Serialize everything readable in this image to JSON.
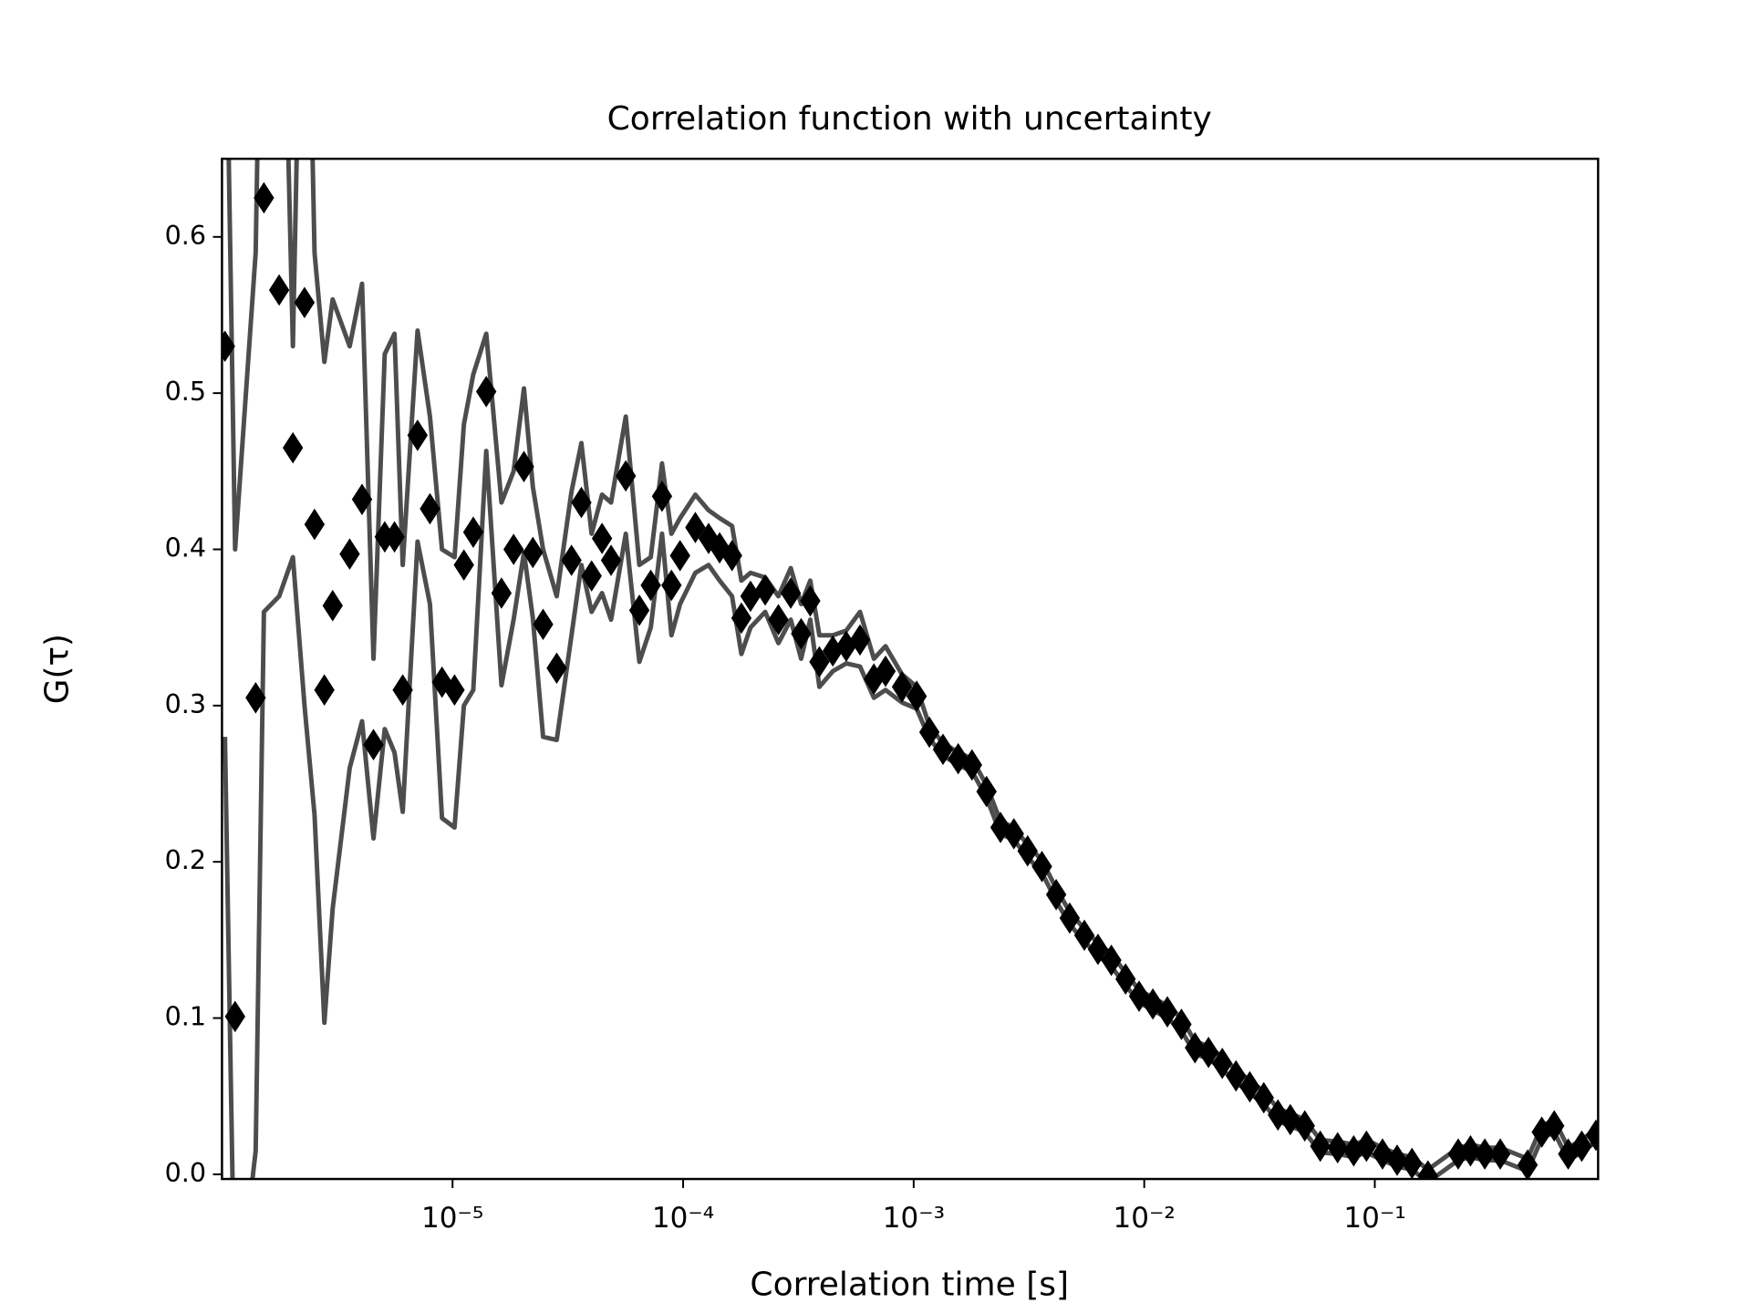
{
  "chart_data": {
    "type": "line",
    "title": "Correlation function with uncertainty",
    "xlabel": "Correlation time [s]",
    "ylabel": "G(τ)",
    "xscale": "log",
    "xlim": [
      1e-06,
      0.93
    ],
    "ylim": [
      -0.003,
      0.65
    ],
    "xticks": [
      {
        "value": 1e-05,
        "label": "10⁻⁵"
      },
      {
        "value": 0.0001,
        "label": "10⁻⁴"
      },
      {
        "value": 0.001,
        "label": "10⁻³"
      },
      {
        "value": 0.01,
        "label": "10⁻²"
      },
      {
        "value": 0.1,
        "label": "10⁻¹"
      }
    ],
    "yticks": [
      {
        "value": 0,
        "label": "0.0"
      },
      0.1,
      0.2,
      0.3,
      0.4,
      0.5,
      0.6
    ],
    "grid": false,
    "x": [
      1.03e-06,
      1.14e-06,
      1.4e-06,
      1.52e-06,
      1.77e-06,
      2.03e-06,
      2.28e-06,
      2.52e-06,
      2.78e-06,
      3.02e-06,
      3.58e-06,
      4.05e-06,
      4.54e-06,
      5.08e-06,
      5.6e-06,
      6.08e-06,
      7.05e-06,
      7.98e-06,
      9e-06,
      1.02e-05,
      1.12e-05,
      1.23e-05,
      1.4e-05,
      1.63e-05,
      1.84e-05,
      2.04e-05,
      2.23e-05,
      2.47e-05,
      2.83e-05,
      3.28e-05,
      3.62e-05,
      4.01e-05,
      4.45e-05,
      4.87e-05,
      5.64e-05,
      6.46e-05,
      7.24e-05,
      8.1e-05,
      8.9e-05,
      9.7e-05,
      0.000113,
      0.000129,
      0.000144,
      0.000163,
      0.000179,
      0.000196,
      0.000227,
      0.000259,
      0.000293,
      0.000325,
      0.000356,
      0.00039,
      0.000446,
      0.00051,
      0.000585,
      0.000672,
      0.000755,
      0.00089,
      0.00103,
      0.00117,
      0.00134,
      0.00156,
      0.00179,
      0.00207,
      0.00238,
      0.00272,
      0.00312,
      0.0036,
      0.00415,
      0.00475,
      0.0055,
      0.0063,
      0.0072,
      0.0083,
      0.0095,
      0.0109,
      0.0126,
      0.0145,
      0.0166,
      0.019,
      0.0218,
      0.025,
      0.0287,
      0.033,
      0.038,
      0.043,
      0.0497,
      0.058,
      0.069,
      0.081,
      0.092,
      0.108,
      0.125,
      0.145,
      0.17,
      0.23,
      0.26,
      0.3,
      0.35,
      0.46,
      0.53,
      0.6,
      0.69,
      0.79,
      0.91
    ],
    "series": [
      {
        "color": "#000000",
        "marker": "diamond",
        "values": [
          0.53,
          0.101,
          0.305,
          0.625,
          0.566,
          0.465,
          0.558,
          0.416,
          0.31,
          0.364,
          0.397,
          0.432,
          0.275,
          0.408,
          0.408,
          0.31,
          0.473,
          0.426,
          0.315,
          0.31,
          0.39,
          0.411,
          0.501,
          0.372,
          0.4,
          0.453,
          0.398,
          0.352,
          0.324,
          0.393,
          0.43,
          0.383,
          0.407,
          0.393,
          0.447,
          0.361,
          0.377,
          0.434,
          0.377,
          0.396,
          0.414,
          0.407,
          0.401,
          0.396,
          0.356,
          0.37,
          0.374,
          0.355,
          0.372,
          0.346,
          0.367,
          0.328,
          0.335,
          0.338,
          0.342,
          0.317,
          0.322,
          0.312,
          0.306,
          0.283,
          0.272,
          0.266,
          0.262,
          0.245,
          0.222,
          0.218,
          0.207,
          0.197,
          0.179,
          0.164,
          0.153,
          0.144,
          0.137,
          0.125,
          0.114,
          0.109,
          0.104,
          0.096,
          0.081,
          0.078,
          0.071,
          0.063,
          0.056,
          0.049,
          0.038,
          0.035,
          0.031,
          0.018,
          0.017,
          0.015,
          0.018,
          0.013,
          0.009,
          0.007,
          -0.001,
          0.013,
          0.015,
          0.013,
          0.013,
          0.006,
          0.027,
          0.031,
          0.013,
          0.018,
          0.025
        ]
      },
      {
        "color": "#4d4d4d",
        "values": [
          0.8,
          0.4,
          0.59,
          0.9,
          0.9,
          0.53,
          0.9,
          0.59,
          0.52,
          0.56,
          0.53,
          0.57,
          0.33,
          0.525,
          0.538,
          0.39,
          0.54,
          0.485,
          0.4,
          0.395,
          0.48,
          0.512,
          0.538,
          0.43,
          0.45,
          0.503,
          0.44,
          0.4,
          0.37,
          0.437,
          0.468,
          0.41,
          0.435,
          0.43,
          0.485,
          0.39,
          0.395,
          0.455,
          0.41,
          0.42,
          0.435,
          0.425,
          0.42,
          0.415,
          0.38,
          0.385,
          0.382,
          0.37,
          0.388,
          0.365,
          0.38,
          0.345,
          0.345,
          0.348,
          0.36,
          0.33,
          0.338,
          0.32,
          0.312,
          0.287,
          0.276,
          0.27,
          0.266,
          0.249,
          0.226,
          0.222,
          0.211,
          0.201,
          0.183,
          0.168,
          0.157,
          0.148,
          0.141,
          0.129,
          0.118,
          0.113,
          0.108,
          0.1,
          0.085,
          0.082,
          0.075,
          0.067,
          0.06,
          0.053,
          0.042,
          0.039,
          0.035,
          0.022,
          0.021,
          0.019,
          0.022,
          0.017,
          0.013,
          0.011,
          0.003,
          0.017,
          0.019,
          0.017,
          0.017,
          0.01,
          0.031,
          0.035,
          0.017,
          0.022,
          0.029
        ]
      },
      {
        "color": "#4d4d4d",
        "values": [
          0.28,
          -0.1,
          0.015,
          0.36,
          0.37,
          0.395,
          0.3,
          0.23,
          0.097,
          0.17,
          0.26,
          0.29,
          0.215,
          0.285,
          0.27,
          0.232,
          0.405,
          0.365,
          0.228,
          0.222,
          0.3,
          0.31,
          0.463,
          0.313,
          0.355,
          0.398,
          0.356,
          0.28,
          0.278,
          0.345,
          0.39,
          0.36,
          0.372,
          0.355,
          0.41,
          0.328,
          0.35,
          0.41,
          0.345,
          0.365,
          0.385,
          0.39,
          0.38,
          0.37,
          0.333,
          0.35,
          0.36,
          0.34,
          0.355,
          0.33,
          0.355,
          0.312,
          0.322,
          0.327,
          0.325,
          0.305,
          0.31,
          0.302,
          0.298,
          0.279,
          0.268,
          0.262,
          0.258,
          0.241,
          0.218,
          0.214,
          0.203,
          0.193,
          0.175,
          0.16,
          0.149,
          0.14,
          0.133,
          0.121,
          0.11,
          0.105,
          0.1,
          0.092,
          0.077,
          0.074,
          0.067,
          0.059,
          0.052,
          0.045,
          0.034,
          0.031,
          0.027,
          0.014,
          0.013,
          0.011,
          0.014,
          0.009,
          0.005,
          0.003,
          -0.005,
          0.009,
          0.011,
          0.009,
          0.009,
          0.002,
          0.023,
          0.027,
          0.009,
          0.014,
          0.021
        ]
      }
    ]
  }
}
